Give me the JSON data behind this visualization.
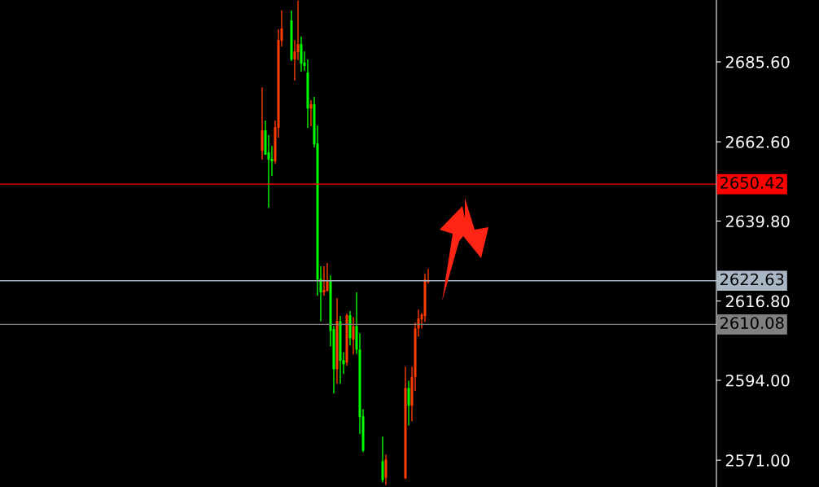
{
  "chart_data": {
    "type": "candlestick",
    "categories": [
      null,
      null,
      null,
      null,
      null,
      null,
      null,
      null,
      null,
      null,
      null,
      null,
      null,
      null,
      null,
      null,
      null,
      null,
      null,
      null,
      null,
      null,
      null,
      null,
      null,
      null,
      null,
      null,
      null,
      null,
      null,
      null,
      null,
      null,
      null,
      null,
      null,
      null,
      null,
      null,
      null,
      null,
      null,
      null,
      null,
      null,
      null,
      null,
      null,
      null,
      null,
      null,
      null,
      null,
      null,
      null,
      null,
      null,
      null,
      null,
      null,
      null,
      null,
      null,
      null,
      null,
      null,
      null,
      null,
      null,
      null,
      null,
      null,
      null,
      null,
      null,
      null,
      null,
      null,
      null,
      null,
      null,
      null,
      null,
      null,
      null,
      null,
      null,
      null,
      null,
      null,
      null,
      null,
      null,
      null,
      null,
      null,
      null,
      null,
      null,
      null,
      null,
      null,
      null,
      null,
      null,
      null,
      null,
      null,
      null,
      null,
      null,
      null,
      null,
      null,
      null,
      null,
      null,
      null,
      null,
      null,
      null,
      null,
      null,
      null,
      null,
      null,
      null,
      null,
      null,
      null,
      null,
      null,
      null,
      null,
      null,
      null,
      null,
      null,
      null,
      null,
      null,
      null,
      null,
      null,
      null,
      null,
      null,
      null,
      null,
      null,
      null,
      null,
      null,
      null,
      null,
      null,
      null,
      null,
      null,
      null,
      null,
      null,
      null,
      null,
      null,
      null,
      null,
      null,
      null,
      null,
      null,
      null,
      null,
      null,
      null,
      null,
      null,
      null,
      null,
      null,
      null,
      null,
      null,
      null,
      null,
      null,
      null,
      null,
      null,
      null,
      null,
      null,
      null,
      null,
      null,
      null,
      null,
      null,
      null,
      null,
      null,
      null,
      null,
      null,
      null,
      null,
      null,
      null,
      null,
      null,
      null,
      null,
      null,
      null,
      null,
      null,
      null,
      null,
      null
    ],
    "ohlc": [
      null,
      null,
      null,
      null,
      null,
      null,
      null,
      null,
      null,
      null,
      null,
      null,
      null,
      null,
      null,
      null,
      null,
      null,
      null,
      null,
      null,
      null,
      null,
      null,
      null,
      null,
      null,
      null,
      null,
      null,
      null,
      null,
      null,
      null,
      null,
      null,
      null,
      null,
      null,
      null,
      null,
      null,
      null,
      null,
      null,
      null,
      null,
      null,
      null,
      null,
      null,
      null,
      null,
      null,
      null,
      null,
      null,
      null,
      null,
      null,
      null,
      null,
      null,
      null,
      null,
      null,
      null,
      null,
      null,
      null,
      null,
      null,
      null,
      null,
      null,
      null,
      null,
      null,
      null,
      null,
      [
        2660.0,
        2678.3,
        2657.5,
        2665.9
      ],
      [
        2665.9,
        2668.7,
        2658.9,
        2658.9
      ],
      [
        2659.6,
        2664.5,
        2643.6,
        2657.5
      ],
      [
        2657.7,
        2661.4,
        2652.8,
        2657.0
      ],
      [
        2657.0,
        2668.7,
        2656.3,
        2666.8
      ],
      [
        2666.6,
        2695.0,
        2663.8,
        2691.9
      ],
      [
        2691.7,
        2700.4,
        2690.0,
        2695.2
      ],
      null,
      null,
      [
        2697.5,
        2700.4,
        2685.8,
        2686.3
      ],
      [
        2686.3,
        2691.9,
        2680.2,
        2688.6
      ],
      [
        2688.4,
        2703.2,
        2686.1,
        2690.7
      ],
      [
        2690.7,
        2692.9,
        2682.8,
        2685.1
      ],
      [
        2685.4,
        2688.6,
        2683.0,
        2684.4
      ],
      [
        2682.5,
        2686.3,
        2666.6,
        2672.2
      ],
      [
        2672.2,
        2674.6,
        2667.1,
        2673.4
      ],
      [
        2673.4,
        2675.5,
        2661.0,
        2661.9
      ],
      [
        2662.1,
        2667.3,
        2618.3,
        2623.0
      ],
      [
        2623.2,
        2626.8,
        2611.0,
        2619.3
      ],
      [
        2619.3,
        2626.8,
        2618.3,
        2620.0
      ],
      [
        2619.7,
        2627.7,
        2619.5,
        2622.5
      ],
      [
        2622.5,
        2624.2,
        2603.8,
        2608.2
      ],
      [
        2608.7,
        2609.6,
        2590.2,
        2597.2
      ],
      [
        2597.2,
        2617.6,
        2593.0,
        2611.0
      ],
      [
        2611.0,
        2612.5,
        2593.0,
        2599.6
      ],
      [
        2599.8,
        2602.1,
        2595.8,
        2598.6
      ],
      [
        2599.1,
        2613.2,
        2598.2,
        2612.7
      ],
      [
        2612.7,
        2613.9,
        2604.0,
        2606.1
      ],
      [
        2605.7,
        2612.2,
        2601.4,
        2609.6
      ],
      [
        2609.6,
        2619.3,
        2601.6,
        2602.8
      ],
      [
        2602.8,
        2607.5,
        2578.5,
        2583.4
      ],
      [
        2583.6,
        2585.7,
        2573.3,
        2573.8
      ],
      null,
      null,
      null,
      null,
      null,
      [
        2570.7,
        2577.8,
        2564.6,
        2565.3
      ],
      [
        2566.0,
        2572.6,
        2563.9,
        2571.2
      ],
      null,
      null,
      null,
      null,
      null,
      [
        2565.8,
        2597.9,
        2565.6,
        2591.8
      ],
      [
        2591.8,
        2593.9,
        2581.0,
        2586.7
      ],
      [
        2586.7,
        2597.9,
        2582.2,
        2594.9
      ],
      [
        2594.9,
        2610.6,
        2590.9,
        2608.9
      ],
      [
        2608.9,
        2614.3,
        2606.6,
        2611.8
      ],
      [
        2611.5,
        2613.4,
        2608.9,
        2612.9
      ],
      [
        2612.5,
        2624.6,
        2610.8,
        2623.0
      ],
      [
        2622.3,
        2626.1,
        2621.8,
        2622.63
      ],
      null,
      null,
      null,
      null,
      null,
      null,
      null,
      null,
      null,
      null,
      null,
      null,
      null,
      null,
      null,
      null,
      null,
      null,
      null,
      null,
      null,
      null,
      null,
      null,
      null,
      null,
      null,
      null,
      null,
      null,
      null,
      null,
      null,
      null,
      null,
      null,
      null,
      null,
      null,
      null,
      null,
      null,
      null,
      null,
      null,
      null,
      null,
      null,
      null,
      null,
      null,
      null,
      null,
      null,
      null,
      null,
      null,
      null,
      null,
      null,
      null,
      null,
      null,
      null,
      null,
      null,
      null,
      null,
      null,
      null,
      null,
      null,
      null,
      null,
      null,
      null,
      null,
      null,
      null,
      null,
      null,
      null,
      null,
      null,
      null,
      null,
      null,
      null
    ],
    "ylim": [
      2563.3,
      2703.4
    ],
    "yticks": [
      {
        "value": 2571.0,
        "label": "2571.00"
      },
      {
        "value": 2594.0,
        "label": "2594.00"
      },
      {
        "value": 2616.8,
        "label": "2616.80"
      },
      {
        "value": 2639.8,
        "label": "2639.80"
      },
      {
        "value": 2662.6,
        "label": "2662.60"
      },
      {
        "value": 2685.6,
        "label": "2685.60"
      }
    ],
    "ref_lines": [
      {
        "axis": "y",
        "value": 2650.42,
        "label": "2650.42",
        "color": "#ff0000"
      },
      {
        "axis": "y",
        "value": 2622.63,
        "label": "2622.63",
        "color": "#a9b6c4"
      },
      {
        "axis": "y",
        "value": 2610.08,
        "label": "2610.08",
        "color": "#808080"
      }
    ],
    "tick_labels": "y",
    "grid": false,
    "legend": false
  }
}
